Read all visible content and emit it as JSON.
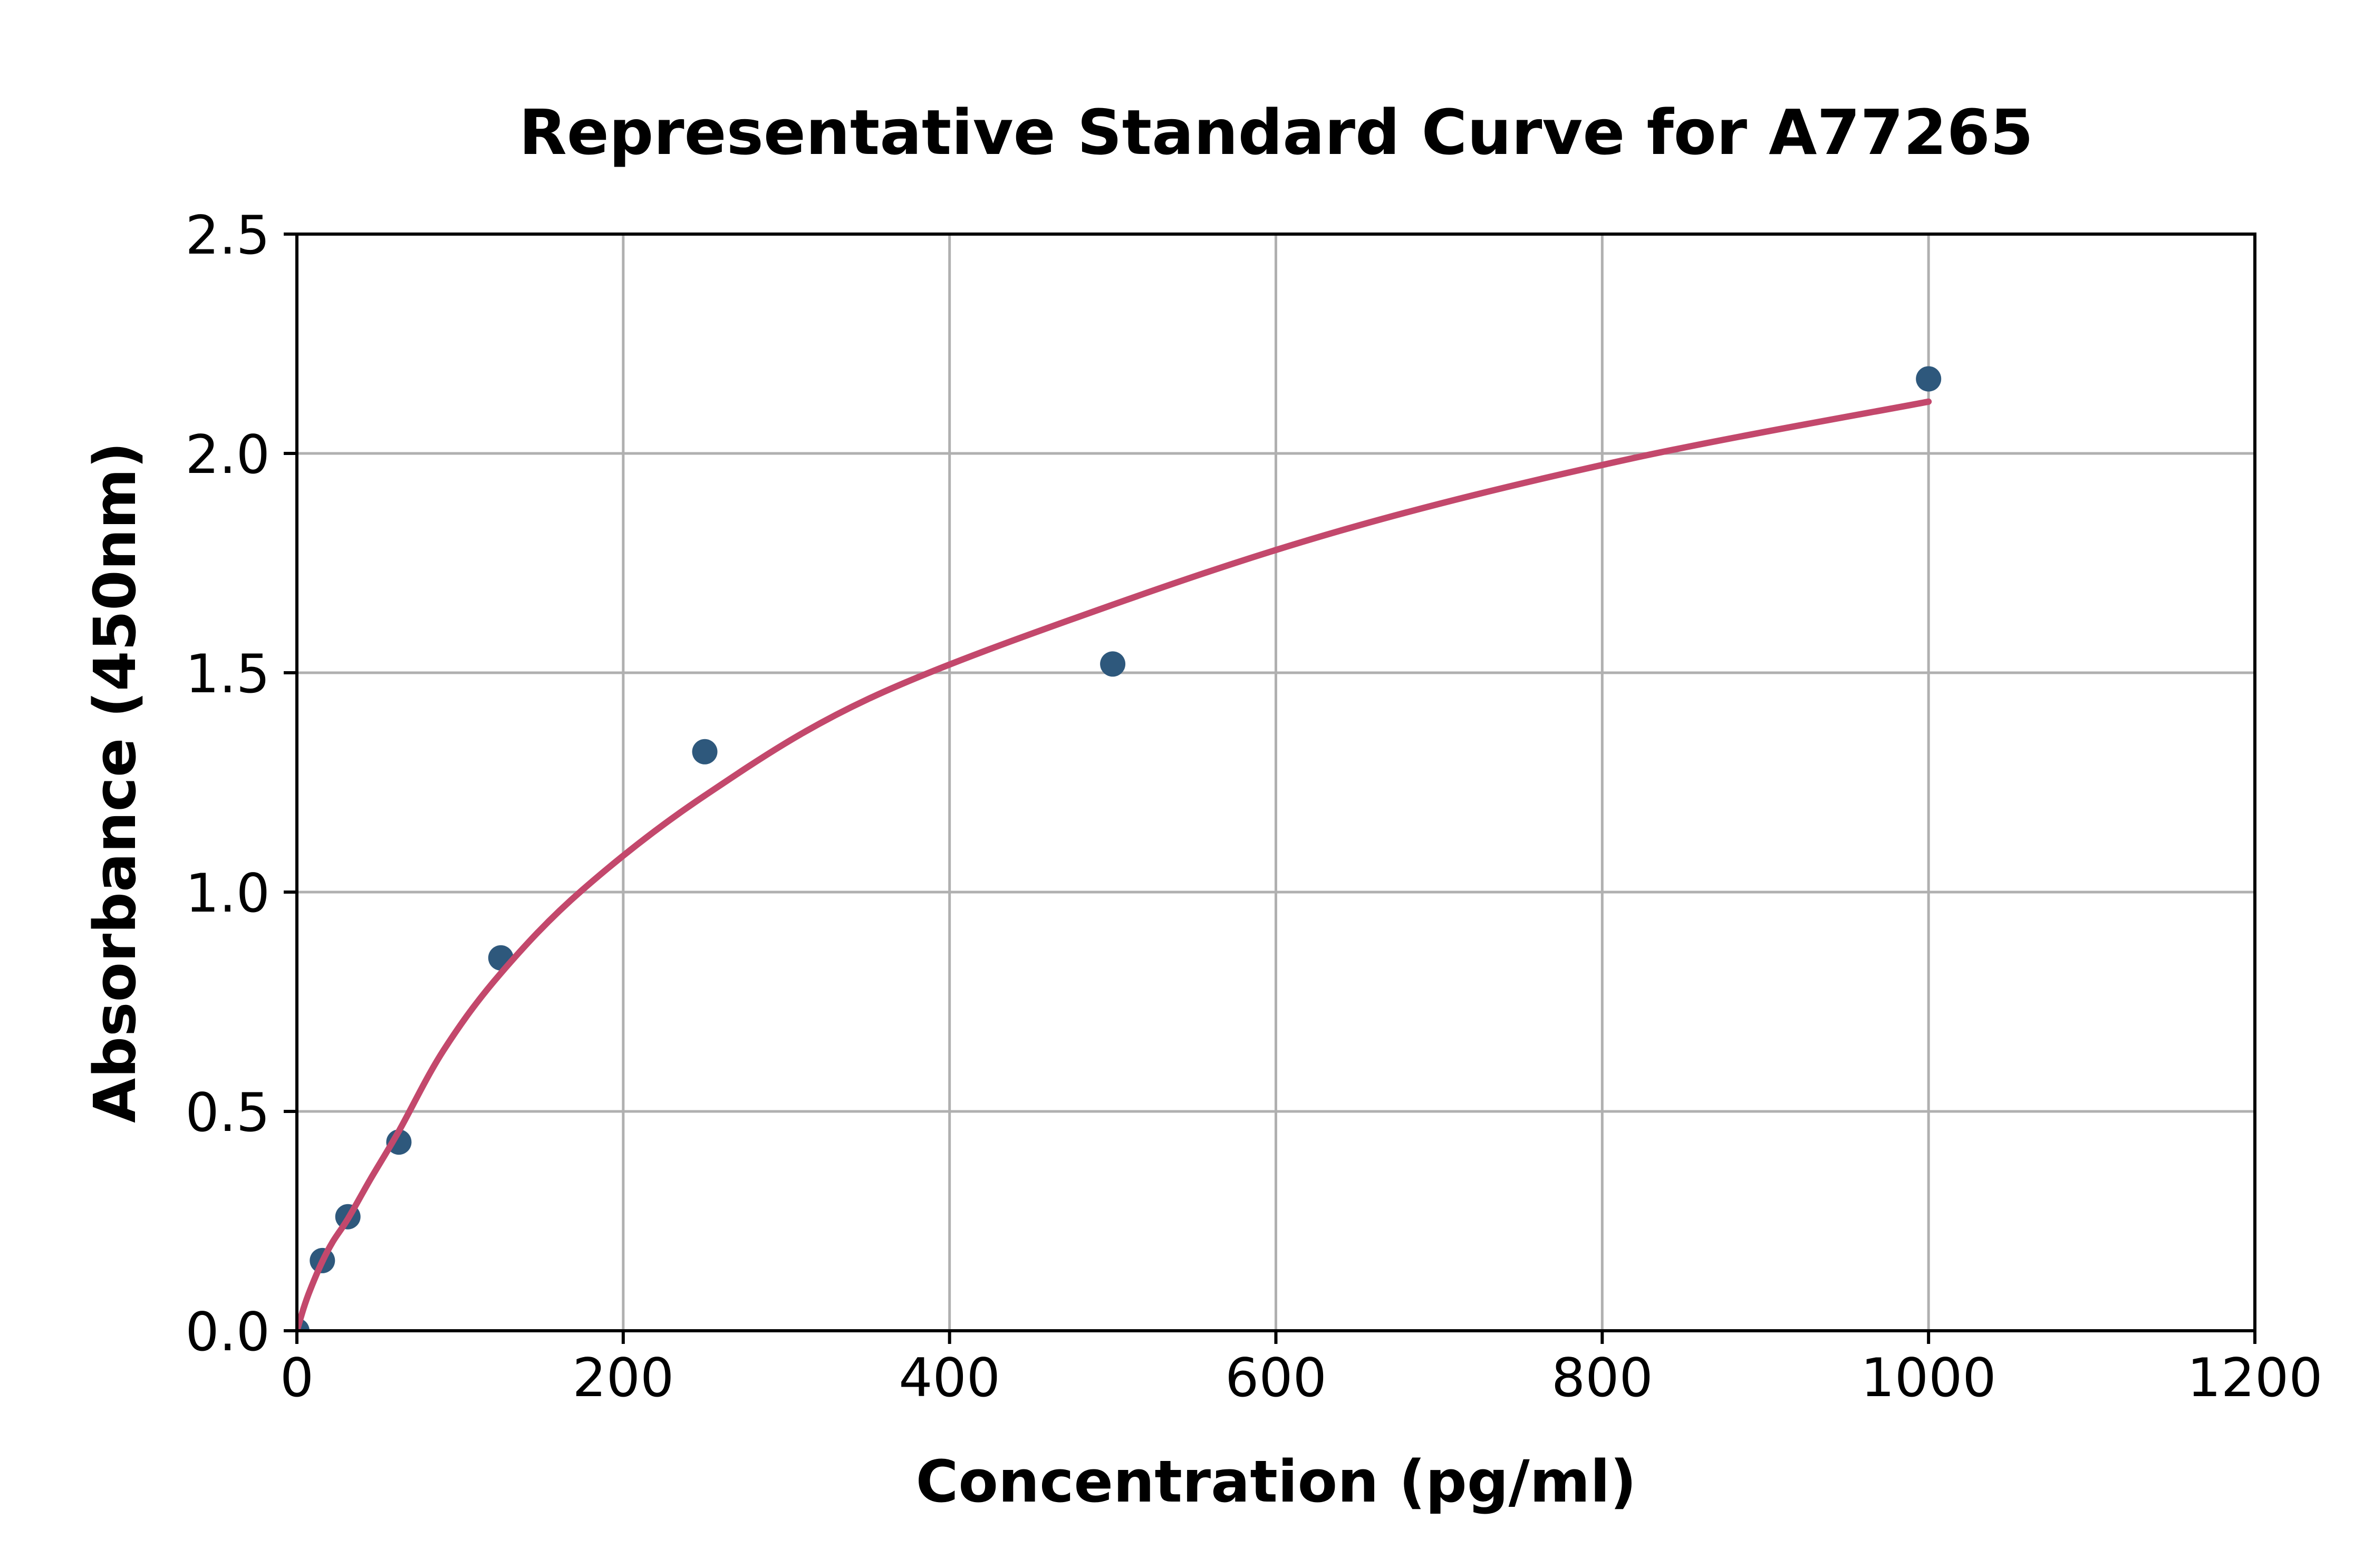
{
  "chart_data": {
    "type": "scatter",
    "title": "Representative Standard Curve for A77265",
    "xlabel": "Concentration (pg/ml)",
    "ylabel": "Absorbance (450nm)",
    "xlim": [
      0,
      1200
    ],
    "ylim": [
      0,
      2.5
    ],
    "x_ticks": [
      0,
      200,
      400,
      600,
      800,
      1000,
      1200
    ],
    "x_tick_labels": [
      "0",
      "200",
      "400",
      "600",
      "800",
      "1000",
      "1200"
    ],
    "y_ticks": [
      0,
      0.5,
      1.0,
      1.5,
      2.0,
      2.5
    ],
    "y_tick_labels": [
      "0.0",
      "0.5",
      "1.0",
      "1.5",
      "2.0",
      "2.5"
    ],
    "grid": true,
    "legend": "none",
    "colors": {
      "background": "#ffffff",
      "gridline": "#b0b0b0",
      "spine": "#000000",
      "scatter": "#2e587c",
      "curve": "#c3486c"
    },
    "series": [
      {
        "name": "standard-points",
        "type": "scatter",
        "color": "#2e587c",
        "points": [
          {
            "x": 0,
            "y": 0.0
          },
          {
            "x": 15.6,
            "y": 0.16
          },
          {
            "x": 31.25,
            "y": 0.26
          },
          {
            "x": 62.5,
            "y": 0.43
          },
          {
            "x": 125,
            "y": 0.85
          },
          {
            "x": 250,
            "y": 1.32
          },
          {
            "x": 500,
            "y": 1.52
          },
          {
            "x": 1000,
            "y": 2.17
          }
        ]
      },
      {
        "name": "fitted-curve",
        "type": "line",
        "color": "#c3486c",
        "points": [
          {
            "x": 0,
            "y": 0.0
          },
          {
            "x": 4,
            "y": 0.05
          },
          {
            "x": 8,
            "y": 0.092
          },
          {
            "x": 15.6,
            "y": 0.158
          },
          {
            "x": 22,
            "y": 0.203
          },
          {
            "x": 31.25,
            "y": 0.255
          },
          {
            "x": 45,
            "y": 0.345
          },
          {
            "x": 62.5,
            "y": 0.455
          },
          {
            "x": 90,
            "y": 0.64
          },
          {
            "x": 125,
            "y": 0.815
          },
          {
            "x": 175,
            "y": 1.005
          },
          {
            "x": 250,
            "y": 1.22
          },
          {
            "x": 350,
            "y": 1.44
          },
          {
            "x": 500,
            "y": 1.655
          },
          {
            "x": 650,
            "y": 1.835
          },
          {
            "x": 820,
            "y": 1.99
          },
          {
            "x": 1000,
            "y": 2.118
          }
        ]
      }
    ]
  }
}
